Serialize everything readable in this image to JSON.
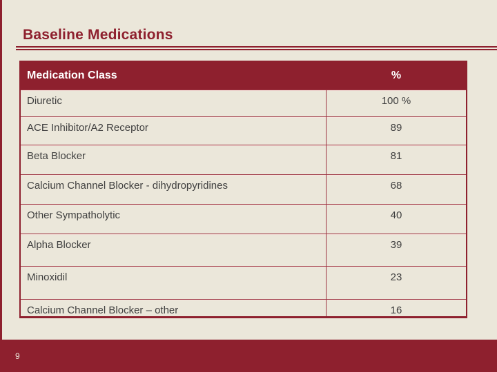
{
  "slide": {
    "title": "Baseline Medications",
    "page_number": "9"
  },
  "table": {
    "headers": [
      "Medication Class",
      "%"
    ],
    "rows": [
      {
        "medication_class": "Diuretic",
        "percent": "100 %"
      },
      {
        "medication_class": "ACE Inhibitor/A2 Receptor",
        "percent": "89"
      },
      {
        "medication_class": "Beta Blocker",
        "percent": "81"
      },
      {
        "medication_class": "Calcium Channel Blocker - dihydropyridines",
        "percent": "68"
      },
      {
        "medication_class": "Other Sympatholytic",
        "percent": "40"
      },
      {
        "medication_class": "Alpha Blocker",
        "percent": "39"
      },
      {
        "medication_class": "Minoxidil",
        "percent": "23"
      },
      {
        "medication_class": "Calcium Channel Blocker – other",
        "percent": "16"
      }
    ]
  },
  "chart_data": {
    "type": "table",
    "title": "Baseline Medications",
    "categories": [
      "Diuretic",
      "ACE Inhibitor/A2 Receptor",
      "Beta Blocker",
      "Calcium Channel Blocker - dihydropyridines",
      "Other Sympatholytic",
      "Alpha Blocker",
      "Minoxidil",
      "Calcium Channel Blocker – other"
    ],
    "values": [
      100,
      89,
      81,
      68,
      40,
      39,
      23,
      16
    ],
    "ylabel": "%"
  },
  "colors": {
    "maroon": "#8e202e",
    "cream": "#ebe7da",
    "row_text": "#3f3f3f",
    "header_text": "#ffffff"
  }
}
